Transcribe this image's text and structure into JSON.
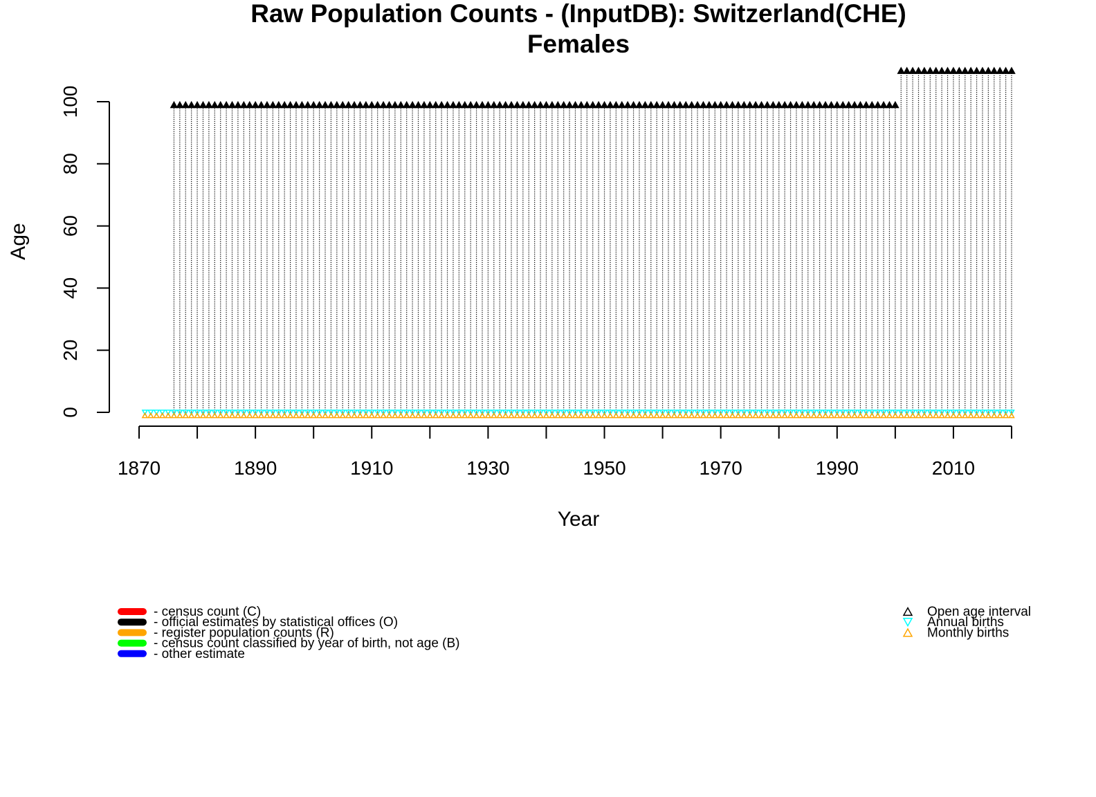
{
  "chart_data": {
    "type": "scatter",
    "title": "Raw Population Counts - (InputDB): Switzerland(CHE)",
    "subtitle": "Females",
    "xlabel": "Year",
    "ylabel": "Age",
    "xlim": [
      1870,
      2020
    ],
    "ylim": [
      0,
      100
    ],
    "x_ticks": [
      "1870",
      "1890",
      "1910",
      "1930",
      "1950",
      "1970",
      "1990",
      "2010"
    ],
    "y_ticks": [
      "0",
      "20",
      "40",
      "60",
      "80",
      "100"
    ],
    "grid": false,
    "series": [
      {
        "name": "official estimates by statistical offices (O)",
        "color": "#000000",
        "years": [
          1876,
          2000
        ],
        "age_range": [
          0,
          99
        ],
        "open_age_interval": 99
      },
      {
        "name": "official estimates by statistical offices (O)",
        "color": "#000000",
        "years": [
          2001,
          2020
        ],
        "age_range": [
          0,
          110
        ],
        "open_age_interval": 110
      },
      {
        "name": "Annual births",
        "color": "#00FFFF",
        "marker": "down-triangle",
        "years": [
          1871,
          2020
        ],
        "age": 0
      },
      {
        "name": "Monthly births",
        "color": "#FFA500",
        "marker": "up-triangle",
        "years": [
          1871,
          2020
        ],
        "age": -1
      }
    ]
  },
  "legend_left": [
    {
      "label": "- census count (C)",
      "color": "#FF0000"
    },
    {
      "label": "- official estimates by statistical offices (O)",
      "color": "#000000"
    },
    {
      "label": "- register population counts (R)",
      "color": "#FFA500"
    },
    {
      "label": "- census count classified by year of birth, not age (B)",
      "color": "#00FF00"
    },
    {
      "label": "- other estimate",
      "color": "#0000FF"
    }
  ],
  "legend_right": [
    {
      "label": "Open age interval",
      "color": "#000000",
      "icon": "up-triangle-icon"
    },
    {
      "label": "Annual births",
      "color": "#00FFFF",
      "icon": "down-triangle-icon"
    },
    {
      "label": "Monthly births",
      "color": "#FFA500",
      "icon": "up-triangle-icon"
    }
  ]
}
